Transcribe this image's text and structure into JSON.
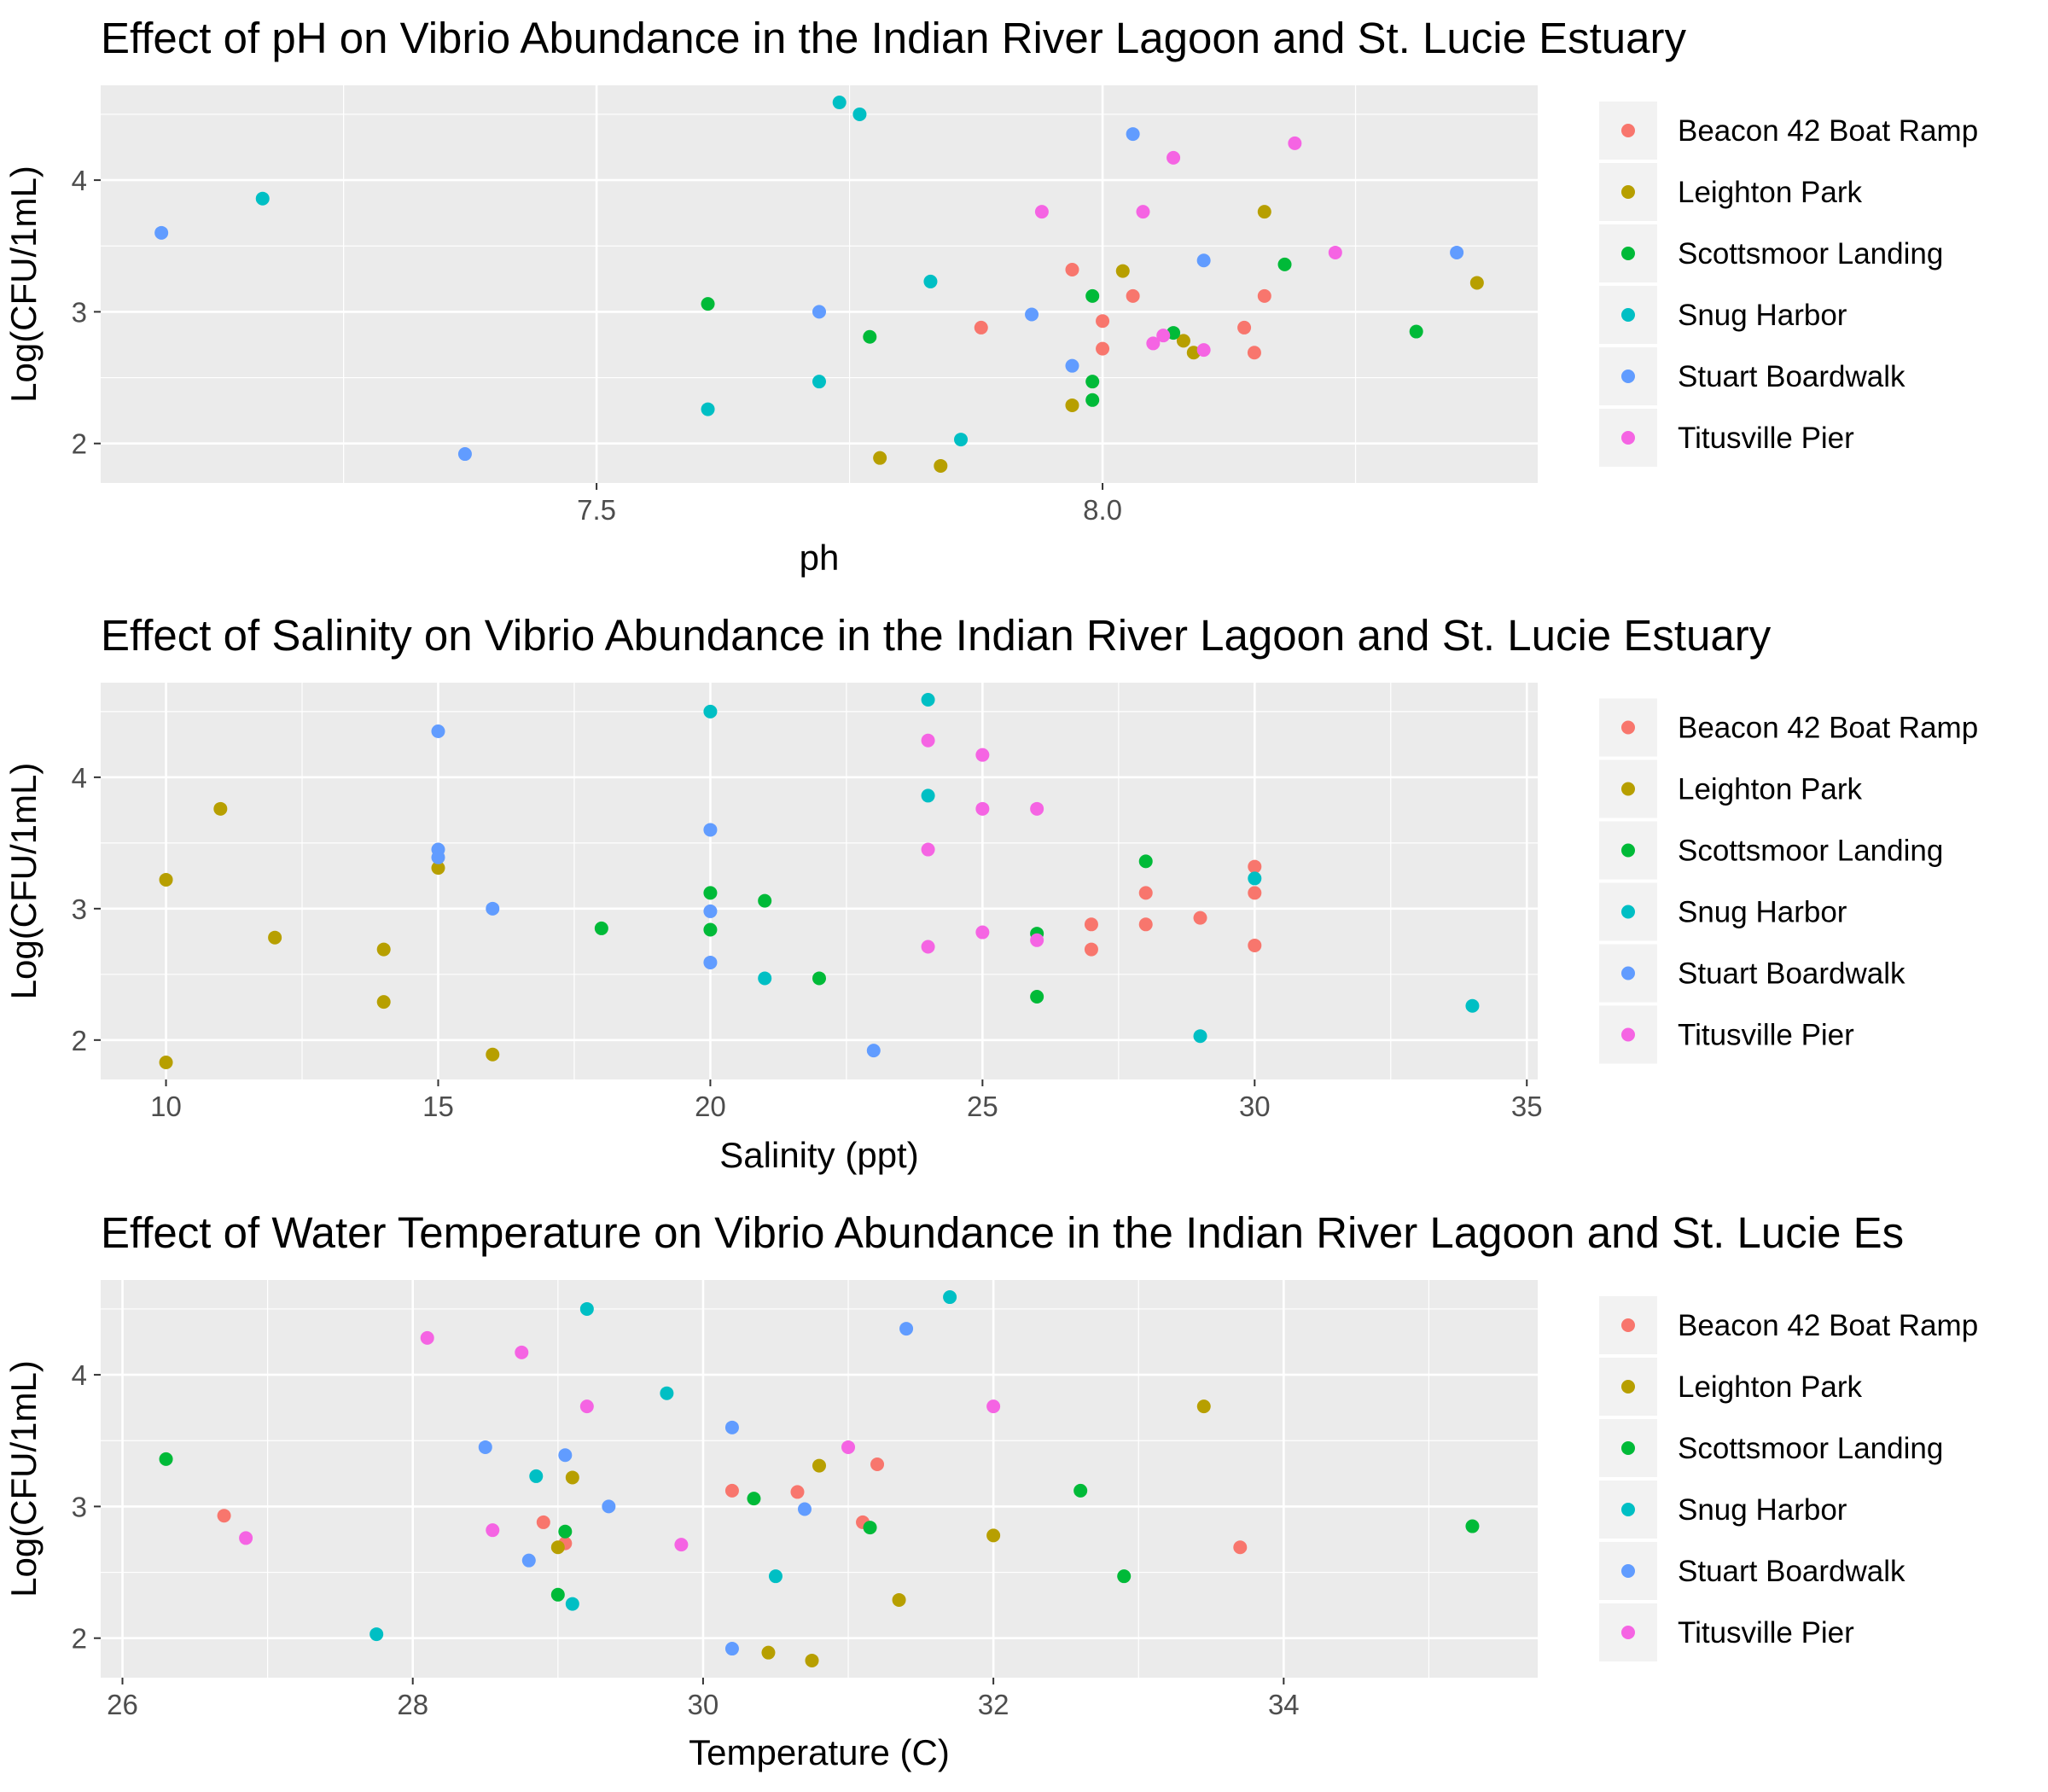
{
  "colors": {
    "panel": "#EBEBEB",
    "grid_major": "#FFFFFF",
    "tick_text": "#4D4D4D",
    "legend_key_bg": "#F2F2F2"
  },
  "legend": {
    "placement": "right",
    "entries": [
      {
        "name": "Beacon 42 Boat Ramp",
        "color": "#F8766D"
      },
      {
        "name": "Leighton Park",
        "color": "#B79F00"
      },
      {
        "name": "Scottsmoor Landing",
        "color": "#00BA38"
      },
      {
        "name": "Snug Harbor",
        "color": "#00BFC4"
      },
      {
        "name": "Stuart Boardwalk",
        "color": "#619CFF"
      },
      {
        "name": "Titusville Pier",
        "color": "#F564E3"
      }
    ]
  },
  "chart_data": [
    {
      "type": "scatter",
      "title": "Effect of pH on Vibrio Abundance in the Indian River Lagoon and St. Lucie Estuary",
      "xlabel": "ph",
      "ylabel": "Log(CFU/1mL)",
      "xlim": [
        7.01,
        8.43
      ],
      "ylim": [
        1.7,
        4.72
      ],
      "x_ticks": [
        7.5,
        8.0
      ],
      "x_tick_labels": [
        "7.5",
        "8.0"
      ],
      "y_ticks": [
        2,
        3,
        4
      ],
      "y_tick_labels": [
        "2",
        "3",
        "4"
      ],
      "grid": true,
      "series": [
        {
          "name": "Beacon 42 Boat Ramp",
          "points": [
            [
              7.88,
              2.88
            ],
            [
              7.97,
              3.32
            ],
            [
              8.0,
              2.93
            ],
            [
              8.0,
              2.72
            ],
            [
              8.03,
              3.12
            ],
            [
              8.14,
              2.88
            ],
            [
              8.15,
              2.69
            ],
            [
              8.16,
              3.12
            ]
          ]
        },
        {
          "name": "Leighton Park",
          "points": [
            [
              7.78,
              1.89
            ],
            [
              7.84,
              1.83
            ],
            [
              7.97,
              2.29
            ],
            [
              8.02,
              3.31
            ],
            [
              8.08,
              2.78
            ],
            [
              8.09,
              2.69
            ],
            [
              8.16,
              3.76
            ],
            [
              8.37,
              3.22
            ]
          ]
        },
        {
          "name": "Scottsmoor Landing",
          "points": [
            [
              7.61,
              3.06
            ],
            [
              7.77,
              2.81
            ],
            [
              7.99,
              3.12
            ],
            [
              7.99,
              2.47
            ],
            [
              7.99,
              2.33
            ],
            [
              8.07,
              2.84
            ],
            [
              8.18,
              3.36
            ],
            [
              8.31,
              2.85
            ]
          ]
        },
        {
          "name": "Snug Harbor",
          "points": [
            [
              7.17,
              3.86
            ],
            [
              7.61,
              2.26
            ],
            [
              7.72,
              2.47
            ],
            [
              7.74,
              4.59
            ],
            [
              7.76,
              4.5
            ],
            [
              7.83,
              3.23
            ],
            [
              7.86,
              2.03
            ]
          ]
        },
        {
          "name": "Stuart Boardwalk",
          "points": [
            [
              7.07,
              3.6
            ],
            [
              7.37,
              1.92
            ],
            [
              7.72,
              3.0
            ],
            [
              7.93,
              2.98
            ],
            [
              7.97,
              2.59
            ],
            [
              8.03,
              4.35
            ],
            [
              8.1,
              3.39
            ],
            [
              8.35,
              3.45
            ]
          ]
        },
        {
          "name": "Titusville Pier",
          "points": [
            [
              7.94,
              3.76
            ],
            [
              8.04,
              3.76
            ],
            [
              8.07,
              4.17
            ],
            [
              8.05,
              2.76
            ],
            [
              8.06,
              2.82
            ],
            [
              8.1,
              2.71
            ],
            [
              8.19,
              4.28
            ],
            [
              8.23,
              3.45
            ]
          ]
        }
      ]
    },
    {
      "type": "scatter",
      "title": "Effect of Salinity on Vibrio Abundance in the Indian River Lagoon and St. Lucie Estuary",
      "xlabel": "Salinity (ppt)",
      "ylabel": "Log(CFU/1mL)",
      "xlim": [
        8.8,
        35.2
      ],
      "ylim": [
        1.7,
        4.72
      ],
      "x_ticks": [
        10,
        15,
        20,
        25,
        30,
        35
      ],
      "x_tick_labels": [
        "10",
        "15",
        "20",
        "25",
        "30",
        "35"
      ],
      "y_ticks": [
        2,
        3,
        4
      ],
      "y_tick_labels": [
        "2",
        "3",
        "4"
      ],
      "grid": true,
      "series": [
        {
          "name": "Beacon 42 Boat Ramp",
          "points": [
            [
              27,
              2.88
            ],
            [
              27,
              2.69
            ],
            [
              28,
              3.12
            ],
            [
              28,
              2.88
            ],
            [
              29,
              2.93
            ],
            [
              30,
              3.32
            ],
            [
              30,
              3.12
            ],
            [
              30,
              2.72
            ]
          ]
        },
        {
          "name": "Leighton Park",
          "points": [
            [
              10,
              3.22
            ],
            [
              10,
              1.83
            ],
            [
              11,
              3.76
            ],
            [
              12,
              2.78
            ],
            [
              14,
              2.69
            ],
            [
              14,
              2.29
            ],
            [
              15,
              3.31
            ],
            [
              16,
              1.89
            ]
          ]
        },
        {
          "name": "Scottsmoor Landing",
          "points": [
            [
              18,
              2.85
            ],
            [
              20,
              3.12
            ],
            [
              20,
              2.84
            ],
            [
              21,
              3.06
            ],
            [
              22,
              2.47
            ],
            [
              26,
              2.81
            ],
            [
              26,
              2.33
            ],
            [
              28,
              3.36
            ]
          ]
        },
        {
          "name": "Snug Harbor",
          "points": [
            [
              20,
              4.5
            ],
            [
              21,
              2.47
            ],
            [
              24,
              4.59
            ],
            [
              24,
              3.86
            ],
            [
              29,
              2.03
            ],
            [
              30,
              3.23
            ],
            [
              34,
              2.26
            ]
          ]
        },
        {
          "name": "Stuart Boardwalk",
          "points": [
            [
              15,
              4.35
            ],
            [
              15,
              3.45
            ],
            [
              15,
              3.39
            ],
            [
              16,
              3.0
            ],
            [
              20,
              3.6
            ],
            [
              20,
              2.98
            ],
            [
              20,
              2.59
            ],
            [
              23,
              1.92
            ]
          ]
        },
        {
          "name": "Titusville Pier",
          "points": [
            [
              24,
              4.28
            ],
            [
              24,
              3.45
            ],
            [
              24,
              2.71
            ],
            [
              25,
              4.17
            ],
            [
              25,
              3.76
            ],
            [
              25,
              2.82
            ],
            [
              26,
              3.76
            ],
            [
              26,
              2.76
            ]
          ]
        }
      ]
    },
    {
      "type": "scatter",
      "title": "Effect of Water Temperature on Vibrio Abundance in the Indian River Lagoon and St. Lucie Es",
      "xlabel": "Temperature (C)",
      "ylabel": "Log(CFU/1mL)",
      "xlim": [
        25.85,
        35.75
      ],
      "ylim": [
        1.7,
        4.72
      ],
      "x_ticks": [
        26,
        28,
        30,
        32,
        34
      ],
      "x_tick_labels": [
        "26",
        "28",
        "30",
        "32",
        "34"
      ],
      "y_ticks": [
        2,
        3,
        4
      ],
      "y_tick_labels": [
        "2",
        "3",
        "4"
      ],
      "grid": true,
      "series": [
        {
          "name": "Beacon 42 Boat Ramp",
          "points": [
            [
              26.7,
              2.93
            ],
            [
              28.9,
              2.88
            ],
            [
              29.05,
              2.72
            ],
            [
              30.2,
              3.12
            ],
            [
              30.65,
              3.11
            ],
            [
              31.1,
              2.88
            ],
            [
              31.2,
              3.32
            ],
            [
              33.7,
              2.69
            ]
          ]
        },
        {
          "name": "Leighton Park",
          "points": [
            [
              29.0,
              2.69
            ],
            [
              29.1,
              3.22
            ],
            [
              30.45,
              1.89
            ],
            [
              30.75,
              1.83
            ],
            [
              30.8,
              3.31
            ],
            [
              31.35,
              2.29
            ],
            [
              32.0,
              2.78
            ],
            [
              33.45,
              3.76
            ]
          ]
        },
        {
          "name": "Scottsmoor Landing",
          "points": [
            [
              26.3,
              3.36
            ],
            [
              29.0,
              2.33
            ],
            [
              29.05,
              2.81
            ],
            [
              30.35,
              3.06
            ],
            [
              31.15,
              2.84
            ],
            [
              32.6,
              3.12
            ],
            [
              32.9,
              2.47
            ],
            [
              35.3,
              2.85
            ]
          ]
        },
        {
          "name": "Snug Harbor",
          "points": [
            [
              27.75,
              2.03
            ],
            [
              28.85,
              3.23
            ],
            [
              29.1,
              2.26
            ],
            [
              29.2,
              4.5
            ],
            [
              29.75,
              3.86
            ],
            [
              30.5,
              2.47
            ],
            [
              31.7,
              4.59
            ]
          ]
        },
        {
          "name": "Stuart Boardwalk",
          "points": [
            [
              28.5,
              3.45
            ],
            [
              28.8,
              2.59
            ],
            [
              29.05,
              3.39
            ],
            [
              29.35,
              3.0
            ],
            [
              30.2,
              3.6
            ],
            [
              30.2,
              1.92
            ],
            [
              30.7,
              2.98
            ],
            [
              31.4,
              4.35
            ]
          ]
        },
        {
          "name": "Titusville Pier",
          "points": [
            [
              26.85,
              2.76
            ],
            [
              28.1,
              4.28
            ],
            [
              28.55,
              2.82
            ],
            [
              28.75,
              4.17
            ],
            [
              29.2,
              3.76
            ],
            [
              29.85,
              2.71
            ],
            [
              31.0,
              3.45
            ],
            [
              32.0,
              3.76
            ]
          ]
        }
      ]
    }
  ]
}
